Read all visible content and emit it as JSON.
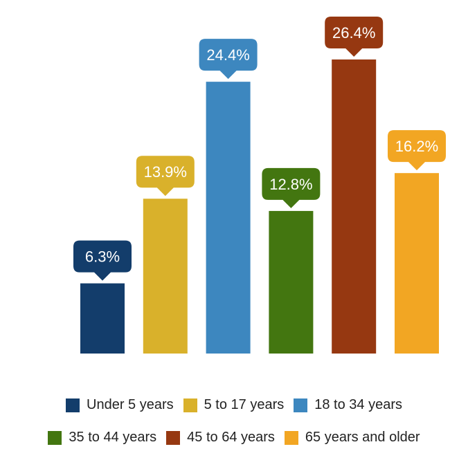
{
  "chart_data": {
    "type": "bar",
    "categories": [
      "Under 5 years",
      "5 to 17 years",
      "18 to 34 years",
      "35 to 44 years",
      "45 to 64 years",
      "65 years and older"
    ],
    "values": [
      6.3,
      13.9,
      24.4,
      12.8,
      26.4,
      16.2
    ],
    "value_labels": [
      "6.3%",
      "13.9%",
      "24.4%",
      "12.8%",
      "26.4%",
      "16.2%"
    ],
    "colors": [
      "#133d6b",
      "#d9b12b",
      "#3d87bf",
      "#437610",
      "#963811",
      "#f2a623"
    ],
    "title": "",
    "xlabel": "",
    "ylabel": "",
    "ylim": [
      0,
      30
    ],
    "grid": false,
    "legend_position": "bottom"
  },
  "legend": {
    "items": [
      {
        "label": "Under 5 years",
        "color": "#133d6b"
      },
      {
        "label": "5 to 17 years",
        "color": "#d9b12b"
      },
      {
        "label": "18 to 34 years",
        "color": "#3d87bf"
      },
      {
        "label": "35 to 44 years",
        "color": "#437610"
      },
      {
        "label": "45 to 64 years",
        "color": "#963811"
      },
      {
        "label": "65 years and older",
        "color": "#f2a623"
      }
    ]
  }
}
